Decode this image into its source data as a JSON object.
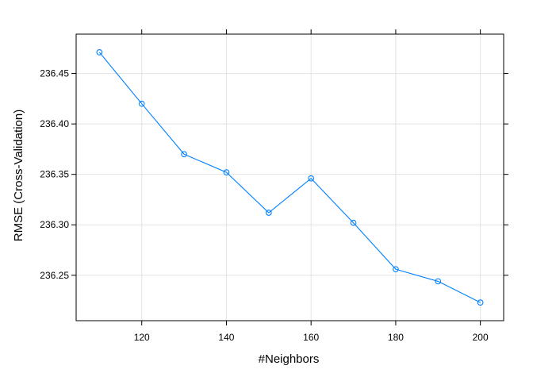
{
  "chart_data": {
    "type": "line",
    "title": "",
    "xlabel": "#Neighbors",
    "ylabel": "RMSE (Cross-Validation)",
    "xlim": [
      104.5,
      205.5
    ],
    "ylim": [
      236.205,
      236.489
    ],
    "xticks": [
      120,
      140,
      160,
      180,
      200
    ],
    "yticks": [
      236.25,
      236.3,
      236.35,
      236.4,
      236.45
    ],
    "ytick_labels": [
      "236.25",
      "236.30",
      "236.35",
      "236.40",
      "236.45"
    ],
    "grid": true,
    "series": [
      {
        "color": "#0080ff",
        "marker": "open-circle",
        "x": [
          110,
          120,
          130,
          140,
          150,
          160,
          170,
          180,
          190,
          200
        ],
        "y": [
          236.471,
          236.42,
          236.37,
          236.352,
          236.312,
          236.346,
          236.302,
          236.256,
          236.244,
          236.223
        ]
      }
    ]
  }
}
